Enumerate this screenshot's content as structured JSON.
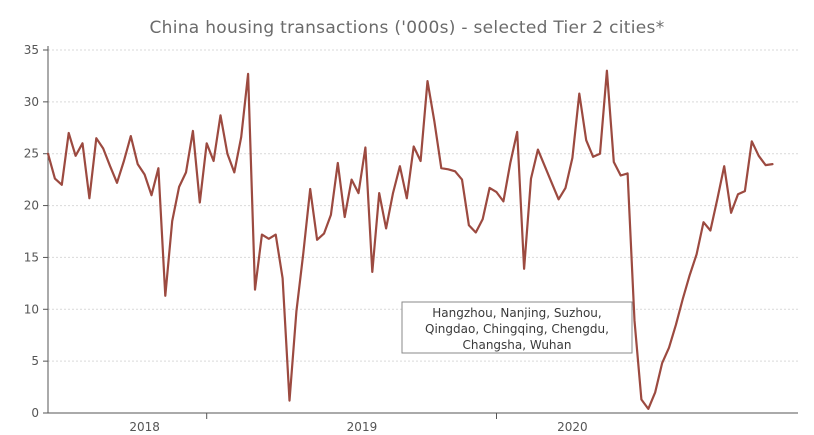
{
  "chart_data": {
    "type": "line",
    "title": "China housing transactions ('000s) - selected Tier 2 cities*",
    "xlabel": "",
    "ylabel": "",
    "ylim": [
      0,
      35
    ],
    "yticks": [
      0,
      5,
      10,
      15,
      20,
      25,
      30,
      35
    ],
    "year_labels": [
      {
        "label": "2018",
        "pos": 14.0
      },
      {
        "label": "2019",
        "pos": 45.5
      },
      {
        "label": "2020",
        "pos": 76.0
      }
    ],
    "year_boundaries": [
      23.0,
      65.0
    ],
    "grid": "horizontal",
    "annotation": [
      "Hangzhou, Nanjing, Suzhou,",
      "Qingdao, Chingqing, Chengdu,",
      "Changsha, Wuhan"
    ],
    "series": [
      {
        "color": "#9c4a40",
        "values": [
          25.0,
          22.6,
          22.0,
          27.0,
          24.8,
          26.0,
          20.7,
          26.5,
          25.5,
          23.8,
          22.2,
          24.3,
          26.7,
          24.0,
          23.0,
          21.0,
          23.6,
          11.3,
          18.5,
          21.8,
          23.2,
          27.2,
          20.3,
          26.0,
          24.3,
          28.7,
          25.0,
          23.2,
          26.6,
          32.7,
          11.9,
          17.2,
          16.8,
          17.2,
          13.0,
          1.2,
          9.8,
          15.4,
          21.6,
          16.7,
          17.3,
          19.1,
          24.1,
          18.9,
          22.5,
          21.2,
          25.6,
          13.6,
          21.2,
          17.8,
          21.2,
          23.8,
          20.7,
          25.7,
          24.3,
          32.0,
          28.1,
          23.6,
          23.5,
          23.3,
          22.5,
          18.1,
          17.4,
          18.7,
          21.7,
          21.3,
          20.4,
          24.1,
          27.1,
          13.9,
          22.6,
          25.4,
          23.8,
          22.2,
          20.6,
          21.7,
          24.6,
          30.8,
          26.3,
          24.7,
          25.0,
          33.0,
          24.2,
          22.9,
          23.1,
          8.9,
          1.3,
          0.4,
          2.0,
          4.8,
          6.3,
          8.5,
          11.0,
          13.3,
          15.3,
          18.4,
          17.6,
          20.6,
          23.8,
          19.3,
          21.1,
          21.4,
          26.2,
          24.8,
          23.9,
          24.0
        ]
      }
    ]
  }
}
